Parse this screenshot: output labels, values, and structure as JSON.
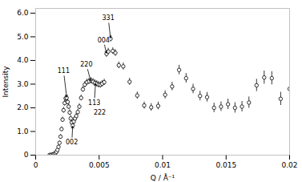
{
  "chart_data": {
    "type": "scatter",
    "xlabel": "Q / Å⁻¹",
    "ylabel": "Intensity",
    "color": "black",
    "marker": "circle",
    "xlim": [
      0,
      0.02
    ],
    "ylim": [
      0.0,
      6.2
    ],
    "xticks": [
      0,
      0.005,
      0.01,
      0.015,
      0.02
    ],
    "yticks": [
      0,
      {
        "value": 1.0,
        "label": "1.0"
      },
      {
        "value": 2.0,
        "label": "2.0"
      },
      {
        "value": 3.0,
        "label": "3.0"
      },
      {
        "value": 4.0,
        "label": "4.0"
      },
      {
        "value": 5.0,
        "label": "5.0"
      },
      {
        "value": 6.0,
        "label": "6.0"
      }
    ],
    "x": [
      0.0011,
      0.0012,
      0.0013,
      0.0014,
      0.00148,
      0.00156,
      0.00164,
      0.00172,
      0.0018,
      0.00188,
      0.00196,
      0.00204,
      0.00212,
      0.0022,
      0.00228,
      0.00236,
      0.00244,
      0.00252,
      0.0026,
      0.00268,
      0.00276,
      0.00284,
      0.00292,
      0.003,
      0.0031,
      0.0032,
      0.00332,
      0.00344,
      0.00358,
      0.00372,
      0.00387,
      0.00403,
      0.0042,
      0.00437,
      0.00453,
      0.00468,
      0.00482,
      0.00496,
      0.0051,
      0.00524,
      0.0054,
      0.00558,
      0.00572,
      0.0059,
      0.00608,
      0.00628,
      0.00655,
      0.0069,
      0.0074,
      0.008,
      0.00855,
      0.0091,
      0.00965,
      0.0102,
      0.01075,
      0.0113,
      0.01185,
      0.0124,
      0.01295,
      0.0135,
      0.01405,
      0.0146,
      0.01515,
      0.0157,
      0.01625,
      0.0168,
      0.0174,
      0.018,
      0.0186,
      0.0193,
      0.02
    ],
    "values": [
      0.01,
      0.01,
      0.02,
      0.04,
      0.06,
      0.09,
      0.14,
      0.22,
      0.35,
      0.52,
      0.78,
      1.1,
      1.5,
      1.9,
      2.2,
      2.4,
      2.42,
      2.25,
      2.05,
      1.8,
      1.55,
      1.38,
      1.25,
      1.42,
      1.55,
      1.65,
      1.82,
      2.05,
      2.42,
      2.78,
      2.98,
      3.08,
      3.12,
      3.15,
      3.1,
      3.05,
      3.02,
      2.98,
      2.97,
      3.02,
      3.08,
      4.28,
      4.38,
      4.92,
      4.4,
      4.32,
      3.8,
      3.75,
      3.1,
      2.52,
      2.1,
      2.02,
      2.08,
      2.55,
      2.9,
      3.6,
      3.25,
      2.8,
      2.5,
      2.45,
      2.0,
      2.05,
      2.15,
      2.0,
      2.05,
      2.22,
      2.95,
      3.28,
      3.25,
      2.38,
      2.8
    ],
    "yerr": [
      0.01,
      0.01,
      0.01,
      0.02,
      0.02,
      0.03,
      0.04,
      0.05,
      0.07,
      0.08,
      0.09,
      0.1,
      0.11,
      0.12,
      0.12,
      0.12,
      0.12,
      0.12,
      0.12,
      0.12,
      0.12,
      0.12,
      0.12,
      0.12,
      0.12,
      0.12,
      0.12,
      0.12,
      0.12,
      0.12,
      0.13,
      0.13,
      0.13,
      0.13,
      0.13,
      0.13,
      0.13,
      0.13,
      0.13,
      0.13,
      0.13,
      0.14,
      0.14,
      0.14,
      0.14,
      0.14,
      0.14,
      0.15,
      0.15,
      0.15,
      0.15,
      0.16,
      0.16,
      0.17,
      0.18,
      0.2,
      0.2,
      0.2,
      0.2,
      0.2,
      0.2,
      0.2,
      0.22,
      0.22,
      0.22,
      0.24,
      0.26,
      0.28,
      0.28,
      0.28,
      0.32
    ],
    "annotations": [
      {
        "text": "111",
        "x": 0.0022,
        "y": 3.55,
        "arrow_x": 0.00245,
        "arrow_y": 2.42
      },
      {
        "text": "002",
        "x": 0.00285,
        "y": 0.55,
        "arrow_x": 0.00292,
        "arrow_y": 1.25
      },
      {
        "text": "220",
        "x": 0.004,
        "y": 3.82,
        "arrow_x": 0.00435,
        "arrow_y": 3.1
      },
      {
        "text": "004",
        "x": 0.00535,
        "y": 4.85,
        "arrow_x": 0.00558,
        "arrow_y": 4.28
      },
      {
        "text": "113",
        "x": 0.00462,
        "y": 2.22,
        "arrow_x": 0.00472,
        "arrow_y": 3.05
      },
      {
        "text": "222",
        "x": 0.00505,
        "y": 1.9
      },
      {
        "text": "331",
        "x": 0.00572,
        "y": 5.78,
        "arrow_x": 0.0059,
        "arrow_y": 4.92
      }
    ]
  }
}
